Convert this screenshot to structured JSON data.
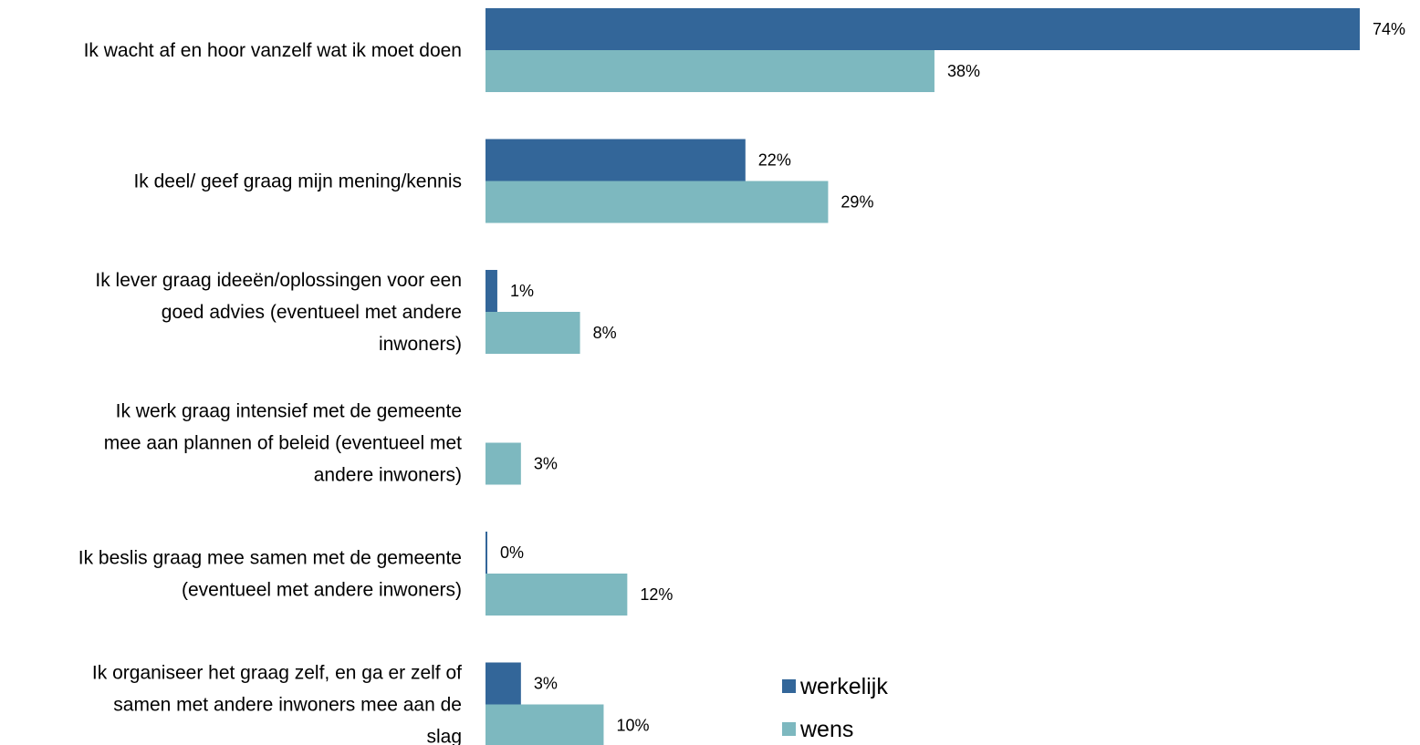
{
  "chart_data": {
    "type": "bar",
    "orientation": "horizontal",
    "categories": [
      [
        "Ik wacht af en hoor vanzelf wat ik moet doen"
      ],
      [
        "Ik deel/ geef graag mijn mening/kennis"
      ],
      [
        "Ik lever graag ideeën/oplossingen voor een",
        "goed advies (eventueel met andere",
        "inwoners)"
      ],
      [
        "Ik werk graag intensief met de gemeente",
        "mee aan plannen of beleid (eventueel met",
        "andere inwoners)"
      ],
      [
        "Ik beslis graag mee samen met de gemeente",
        "(eventueel met andere inwoners)"
      ],
      [
        "Ik organiseer het graag zelf, en ga er zelf of",
        "samen met andere inwoners mee aan de",
        "slag"
      ]
    ],
    "series": [
      {
        "name": "werkelijk",
        "color": "#336699",
        "values": [
          74,
          22,
          1,
          null,
          0,
          3
        ],
        "labels": [
          "74%",
          "22%",
          "1%",
          "",
          "0%",
          "3%"
        ]
      },
      {
        "name": "wens",
        "color": "#7db8bf",
        "values": [
          38,
          29,
          8,
          3,
          12,
          10
        ],
        "labels": [
          "38%",
          "29%",
          "8%",
          "3%",
          "12%",
          "10%"
        ]
      }
    ],
    "xlim": [
      0,
      74
    ],
    "grid": false,
    "legend_position": "bottom-right"
  }
}
